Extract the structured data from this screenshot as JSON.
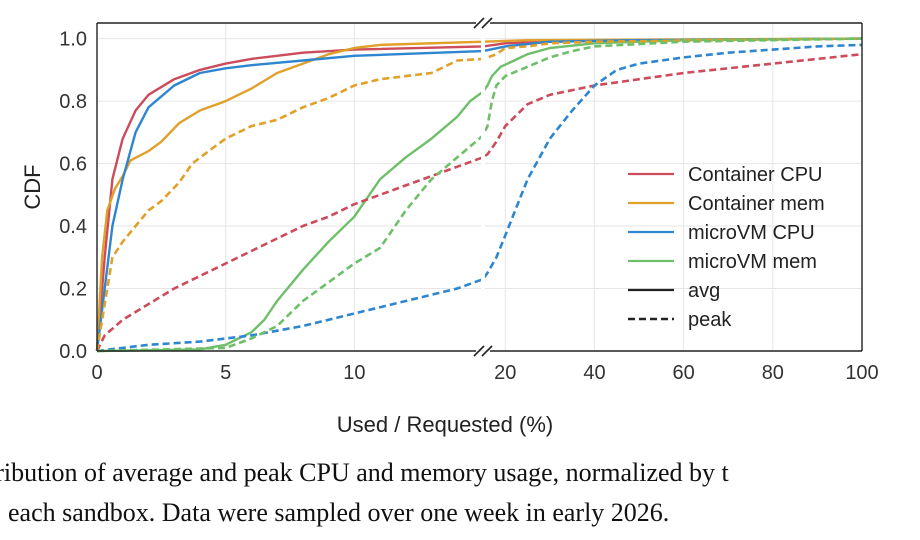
{
  "chart_data": {
    "type": "line",
    "xlabel": "Used / Requested (%)",
    "ylabel": "CDF",
    "ylim": [
      0,
      1.05
    ],
    "x_axis_broken": true,
    "x_left_range": [
      0,
      15
    ],
    "x_right_range": [
      15,
      100
    ],
    "x_ticks_left": [
      "0",
      "5",
      "10"
    ],
    "x_ticks_right": [
      "20",
      "40",
      "60",
      "80",
      "100"
    ],
    "y_ticks": [
      "0.0",
      "0.2",
      "0.4",
      "0.6",
      "0.8",
      "1.0"
    ],
    "grid": true,
    "legend_position": "right",
    "legend": [
      {
        "label": "Container CPU",
        "color": "#cc4c5c",
        "style": "solid"
      },
      {
        "label": "Container mem",
        "color": "#e0a02a",
        "style": "solid"
      },
      {
        "label": "microVM CPU",
        "color": "#2e86d0",
        "style": "solid"
      },
      {
        "label": "microVM mem",
        "color": "#6fbf6a",
        "style": "solid"
      },
      {
        "label": "avg",
        "color": "#222222",
        "style": "solid"
      },
      {
        "label": "peak",
        "color": "#222222",
        "style": "dashed"
      }
    ],
    "series": [
      {
        "name": "Container CPU avg",
        "color": "#cc4c5c",
        "dash": false,
        "points": [
          [
            0,
            0
          ],
          [
            0.3,
            0.3
          ],
          [
            0.6,
            0.55
          ],
          [
            1,
            0.68
          ],
          [
            1.5,
            0.77
          ],
          [
            2,
            0.82
          ],
          [
            3,
            0.87
          ],
          [
            4,
            0.9
          ],
          [
            5,
            0.92
          ],
          [
            6,
            0.935
          ],
          [
            7,
            0.945
          ],
          [
            8,
            0.955
          ],
          [
            10,
            0.965
          ],
          [
            15,
            0.975
          ],
          [
            20,
            0.985
          ],
          [
            30,
            0.99
          ],
          [
            50,
            0.995
          ],
          [
            100,
            1.0
          ]
        ]
      },
      {
        "name": "Container mem avg",
        "color": "#e0a02a",
        "dash": false,
        "points": [
          [
            0,
            0
          ],
          [
            0.2,
            0.3
          ],
          [
            0.4,
            0.45
          ],
          [
            0.7,
            0.52
          ],
          [
            1,
            0.56
          ],
          [
            1.3,
            0.61
          ],
          [
            2,
            0.64
          ],
          [
            2.5,
            0.67
          ],
          [
            3.2,
            0.73
          ],
          [
            4,
            0.77
          ],
          [
            5,
            0.8
          ],
          [
            6,
            0.84
          ],
          [
            7,
            0.89
          ],
          [
            8,
            0.92
          ],
          [
            9,
            0.95
          ],
          [
            10,
            0.97
          ],
          [
            11,
            0.98
          ],
          [
            15,
            0.99
          ],
          [
            25,
            0.995
          ],
          [
            100,
            1.0
          ]
        ]
      },
      {
        "name": "microVM CPU avg",
        "color": "#2e86d0",
        "dash": false,
        "points": [
          [
            0,
            0
          ],
          [
            0.3,
            0.2
          ],
          [
            0.6,
            0.4
          ],
          [
            1,
            0.55
          ],
          [
            1.5,
            0.7
          ],
          [
            2,
            0.78
          ],
          [
            3,
            0.85
          ],
          [
            4,
            0.89
          ],
          [
            5,
            0.905
          ],
          [
            6,
            0.915
          ],
          [
            8,
            0.93
          ],
          [
            10,
            0.945
          ],
          [
            15,
            0.96
          ],
          [
            20,
            0.975
          ],
          [
            30,
            0.99
          ],
          [
            50,
            0.995
          ],
          [
            100,
            1.0
          ]
        ]
      },
      {
        "name": "microVM mem avg",
        "color": "#6fbf6a",
        "dash": false,
        "points": [
          [
            0,
            0
          ],
          [
            4,
            0.005
          ],
          [
            5,
            0.02
          ],
          [
            5.5,
            0.04
          ],
          [
            6,
            0.06
          ],
          [
            6.5,
            0.1
          ],
          [
            7,
            0.16
          ],
          [
            8,
            0.26
          ],
          [
            9,
            0.35
          ],
          [
            10,
            0.43
          ],
          [
            10.5,
            0.49
          ],
          [
            11,
            0.55
          ],
          [
            12,
            0.62
          ],
          [
            13,
            0.68
          ],
          [
            14,
            0.75
          ],
          [
            14.5,
            0.8
          ],
          [
            15,
            0.83
          ],
          [
            16,
            0.85
          ],
          [
            17,
            0.88
          ],
          [
            19,
            0.91
          ],
          [
            22,
            0.93
          ],
          [
            25,
            0.95
          ],
          [
            30,
            0.97
          ],
          [
            40,
            0.985
          ],
          [
            60,
            0.995
          ],
          [
            100,
            1.0
          ]
        ]
      },
      {
        "name": "Container CPU peak",
        "color": "#cc4c5c",
        "dash": true,
        "points": [
          [
            0,
            0
          ],
          [
            0.3,
            0.05
          ],
          [
            1,
            0.1
          ],
          [
            2,
            0.15
          ],
          [
            3,
            0.2
          ],
          [
            4,
            0.24
          ],
          [
            5,
            0.28
          ],
          [
            6,
            0.32
          ],
          [
            7,
            0.36
          ],
          [
            8,
            0.4
          ],
          [
            9,
            0.43
          ],
          [
            10,
            0.47
          ],
          [
            11,
            0.5
          ],
          [
            12,
            0.53
          ],
          [
            13,
            0.56
          ],
          [
            14,
            0.59
          ],
          [
            15,
            0.62
          ],
          [
            16,
            0.63
          ],
          [
            18,
            0.67
          ],
          [
            20,
            0.72
          ],
          [
            25,
            0.79
          ],
          [
            30,
            0.82
          ],
          [
            40,
            0.85
          ],
          [
            50,
            0.87
          ],
          [
            60,
            0.89
          ],
          [
            80,
            0.92
          ],
          [
            100,
            0.95
          ]
        ]
      },
      {
        "name": "Container mem peak",
        "color": "#e0a02a",
        "dash": true,
        "points": [
          [
            0,
            0
          ],
          [
            0.3,
            0.15
          ],
          [
            0.6,
            0.3
          ],
          [
            1,
            0.35
          ],
          [
            1.5,
            0.4
          ],
          [
            2,
            0.45
          ],
          [
            2.5,
            0.48
          ],
          [
            3.2,
            0.54
          ],
          [
            3.7,
            0.6
          ],
          [
            4.5,
            0.65
          ],
          [
            5,
            0.68
          ],
          [
            6,
            0.72
          ],
          [
            7,
            0.74
          ],
          [
            8,
            0.78
          ],
          [
            9,
            0.81
          ],
          [
            10,
            0.85
          ],
          [
            11,
            0.87
          ],
          [
            12,
            0.88
          ],
          [
            13,
            0.89
          ],
          [
            14,
            0.93
          ],
          [
            15,
            0.935
          ],
          [
            16,
            0.94
          ],
          [
            18,
            0.95
          ],
          [
            20,
            0.97
          ],
          [
            25,
            0.975
          ],
          [
            30,
            0.985
          ],
          [
            40,
            0.99
          ],
          [
            100,
            1.0
          ]
        ]
      },
      {
        "name": "microVM CPU peak",
        "color": "#2e86d0",
        "dash": true,
        "points": [
          [
            0,
            0
          ],
          [
            2,
            0.02
          ],
          [
            4,
            0.03
          ],
          [
            6,
            0.05
          ],
          [
            8,
            0.08
          ],
          [
            10,
            0.12
          ],
          [
            12,
            0.16
          ],
          [
            14,
            0.2
          ],
          [
            15,
            0.23
          ],
          [
            16,
            0.25
          ],
          [
            18,
            0.3
          ],
          [
            20,
            0.37
          ],
          [
            25,
            0.55
          ],
          [
            30,
            0.68
          ],
          [
            35,
            0.77
          ],
          [
            40,
            0.85
          ],
          [
            45,
            0.9
          ],
          [
            50,
            0.92
          ],
          [
            60,
            0.94
          ],
          [
            70,
            0.955
          ],
          [
            80,
            0.965
          ],
          [
            90,
            0.975
          ],
          [
            100,
            0.98
          ]
        ]
      },
      {
        "name": "microVM mem peak",
        "color": "#6fbf6a",
        "dash": true,
        "points": [
          [
            0,
            0
          ],
          [
            5,
            0.01
          ],
          [
            6,
            0.04
          ],
          [
            7,
            0.08
          ],
          [
            8,
            0.16
          ],
          [
            9,
            0.22
          ],
          [
            10,
            0.28
          ],
          [
            11,
            0.33
          ],
          [
            12,
            0.45
          ],
          [
            13,
            0.55
          ],
          [
            14,
            0.62
          ],
          [
            15,
            0.69
          ],
          [
            16,
            0.72
          ],
          [
            17,
            0.8
          ],
          [
            18,
            0.85
          ],
          [
            20,
            0.88
          ],
          [
            25,
            0.91
          ],
          [
            30,
            0.94
          ],
          [
            35,
            0.96
          ],
          [
            40,
            0.975
          ],
          [
            60,
            0.99
          ],
          [
            100,
            1.0
          ]
        ]
      }
    ]
  },
  "caption": {
    "line1": "tribution of average and peak CPU and memory usage, normalized by t",
    "line2": "each sandbox. Data were sampled over one week in early 2026."
  }
}
